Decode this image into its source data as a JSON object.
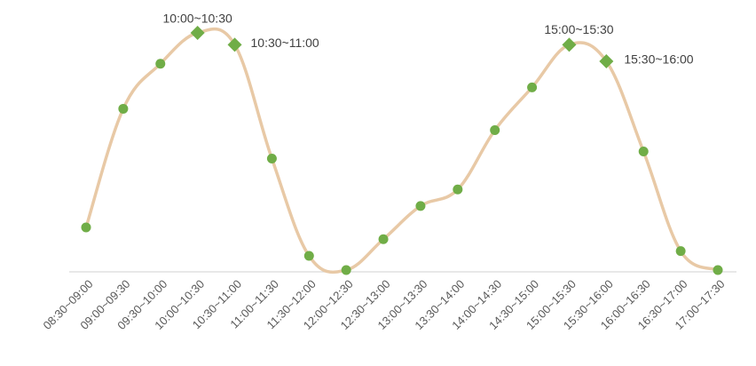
{
  "chart_data": {
    "type": "line",
    "title": "",
    "xlabel": "",
    "ylabel": "",
    "categories": [
      "08:30~09:00",
      "09:00~09:30",
      "09:30~10:00",
      "10:00~10:30",
      "10:30~11:00",
      "11:00~11:30",
      "11:30~12:00",
      "12:00~12:30",
      "12:30~13:00",
      "13:00~13:30",
      "13:30~14:00",
      "14:00~14:30",
      "14:30~15:00",
      "15:00~15:30",
      "15:30~16:00",
      "16:00~16:30",
      "16:30~17:00",
      "17:00~17:30"
    ],
    "series": [
      {
        "values": [
          18,
          68,
          87,
          100,
          95,
          47,
          6,
          0,
          13,
          27,
          34,
          59,
          77,
          95,
          88,
          50,
          8,
          0
        ]
      }
    ],
    "ylim": [
      0,
      100
    ],
    "smooth": true,
    "grid": false,
    "y_axis_visible": false,
    "highlighted": [
      3,
      4,
      13,
      14
    ],
    "annotations": [
      {
        "index": 3,
        "text": "10:00~10:30"
      },
      {
        "index": 4,
        "text": "10:30~11:00"
      },
      {
        "index": 13,
        "text": "15:00~15:30"
      },
      {
        "index": 14,
        "text": "15:30~16:00"
      }
    ],
    "colors": {
      "line": "#e8c9a6",
      "marker": "#70ad47",
      "axis": "#d9d9d9",
      "tick_text": "#595959",
      "annotation_text": "#404040"
    }
  }
}
